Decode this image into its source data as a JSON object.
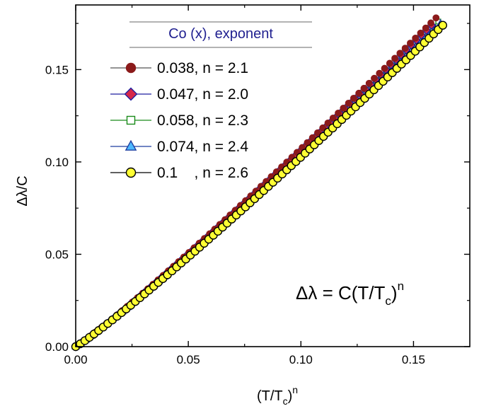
{
  "chart_data": {
    "type": "scatter",
    "xlabel_main": "(T/T",
    "xlabel_sub": "c",
    "xlabel_close": ")",
    "xlabel_sup": "n",
    "ylabel": "Δλ/C",
    "xlim": [
      0.0,
      0.175
    ],
    "ylim": [
      0.0,
      0.185
    ],
    "x_ticks": [
      0.0,
      0.05,
      0.1,
      0.15
    ],
    "x_tick_labels": [
      "0.00",
      "0.05",
      "0.10",
      "0.15"
    ],
    "y_ticks": [
      0.0,
      0.05,
      0.1,
      0.15
    ],
    "y_tick_labels": [
      "0.00",
      "0.05",
      "0.10",
      "0.15"
    ],
    "legend_title": "Co (x), exponent",
    "legend_placement": "top-left",
    "equation": {
      "lhs": "Δλ = C(T/T",
      "sub": "c",
      "rhs": ")",
      "sup": "n"
    },
    "series": [
      {
        "name": "0.038, n = 2.1",
        "marker": "circle",
        "fill": "#8b1a1a",
        "stroke": "#8b1a1a",
        "line": "#6b6b6b",
        "x_range": [
          0.0,
          0.16
        ],
        "y_end": 0.178
      },
      {
        "name": "0.047, n = 2.0",
        "marker": "diamond",
        "fill": "#d6284a",
        "stroke": "#1f1fa0",
        "line": "#1f1fa0",
        "x_range": [
          0.0,
          0.158
        ],
        "y_end": 0.174
      },
      {
        "name": "0.058, n = 2.3",
        "marker": "square-open",
        "fill": "#ffffff",
        "stroke": "#1a8a1a",
        "line": "#1a8a1a",
        "x_range": [
          0.0,
          0.161
        ],
        "y_end": 0.176
      },
      {
        "name": "0.074, n = 2.4",
        "marker": "triangle",
        "fill": "#4db8ff",
        "stroke": "#1f3fa0",
        "line": "#1f3fa0",
        "x_range": [
          0.0,
          0.162
        ],
        "y_end": 0.175
      },
      {
        "name": "0.1    , n = 2.6",
        "marker": "circle",
        "fill": "#ffff33",
        "stroke": "#000000",
        "line": "#000000",
        "x_range": [
          0.0,
          0.163
        ],
        "y_end": 0.174
      }
    ]
  }
}
